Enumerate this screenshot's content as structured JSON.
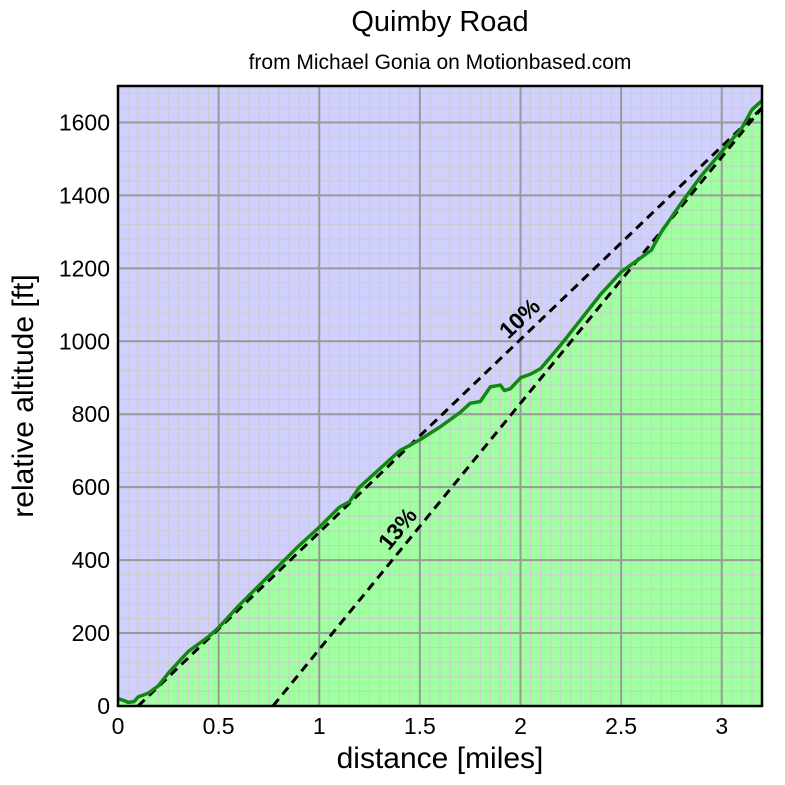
{
  "chart_data": {
    "type": "area",
    "title": "Quimby Road",
    "subtitle": "from Michael Gonia on Motionbased.com",
    "xlabel": "distance [miles]",
    "ylabel": "relative altitude [ft]",
    "xlim": [
      0,
      3.2
    ],
    "ylim": [
      0,
      1700
    ],
    "x_ticks": [
      {
        "value": 0,
        "label": "0"
      },
      {
        "value": 0.5,
        "label": "0.5"
      },
      {
        "value": 1,
        "label": "1"
      },
      {
        "value": 1.5,
        "label": "1.5"
      },
      {
        "value": 2,
        "label": "2"
      },
      {
        "value": 2.5,
        "label": "2.5"
      },
      {
        "value": 3,
        "label": "3"
      }
    ],
    "y_ticks": [
      {
        "value": 0,
        "label": "0"
      },
      {
        "value": 200,
        "label": "200"
      },
      {
        "value": 400,
        "label": "400"
      },
      {
        "value": 600,
        "label": "600"
      },
      {
        "value": 800,
        "label": "800"
      },
      {
        "value": 1000,
        "label": "1000"
      },
      {
        "value": 1200,
        "label": "1200"
      },
      {
        "value": 1400,
        "label": "1400"
      },
      {
        "value": 1600,
        "label": "1600"
      }
    ],
    "grid": true,
    "minor_grid": true,
    "colors": {
      "sky": "#d0d0ff",
      "ground": "#a0ffa0",
      "profile_line": "#118811",
      "major_grid": "#999999",
      "minor_grid": "#cccccc",
      "reference_lines": "#000000"
    },
    "series": [
      {
        "values_x": [
          0,
          0.03,
          0.05,
          0.08,
          0.1,
          0.15,
          0.2,
          0.25,
          0.3,
          0.35,
          0.4,
          0.45,
          0.5,
          0.55,
          0.6,
          0.7,
          0.8,
          0.9,
          1.0,
          1.1,
          1.15,
          1.2,
          1.3,
          1.4,
          1.45,
          1.5,
          1.6,
          1.7,
          1.75,
          1.8,
          1.85,
          1.9,
          1.92,
          1.95,
          2.0,
          2.05,
          2.1,
          2.2,
          2.3,
          2.4,
          2.5,
          2.6,
          2.65,
          2.7,
          2.8,
          2.9,
          3.0,
          3.1,
          3.15,
          3.2
        ],
        "values_y": [
          20,
          15,
          10,
          12,
          25,
          35,
          55,
          90,
          120,
          150,
          170,
          190,
          215,
          245,
          275,
          330,
          385,
          440,
          490,
          545,
          560,
          600,
          650,
          700,
          715,
          730,
          765,
          805,
          830,
          835,
          875,
          880,
          865,
          870,
          900,
          910,
          925,
          990,
          1060,
          1130,
          1190,
          1230,
          1250,
          1300,
          1380,
          1455,
          1520,
          1585,
          1635,
          1660
        ]
      }
    ],
    "reference_lines": [
      {
        "label": "10%",
        "x": [
          0.1,
          3.2
        ],
        "y": [
          0,
          1640
        ]
      },
      {
        "label": "13%",
        "x": [
          0.77,
          3.2
        ],
        "y": [
          0,
          1640
        ]
      }
    ]
  }
}
